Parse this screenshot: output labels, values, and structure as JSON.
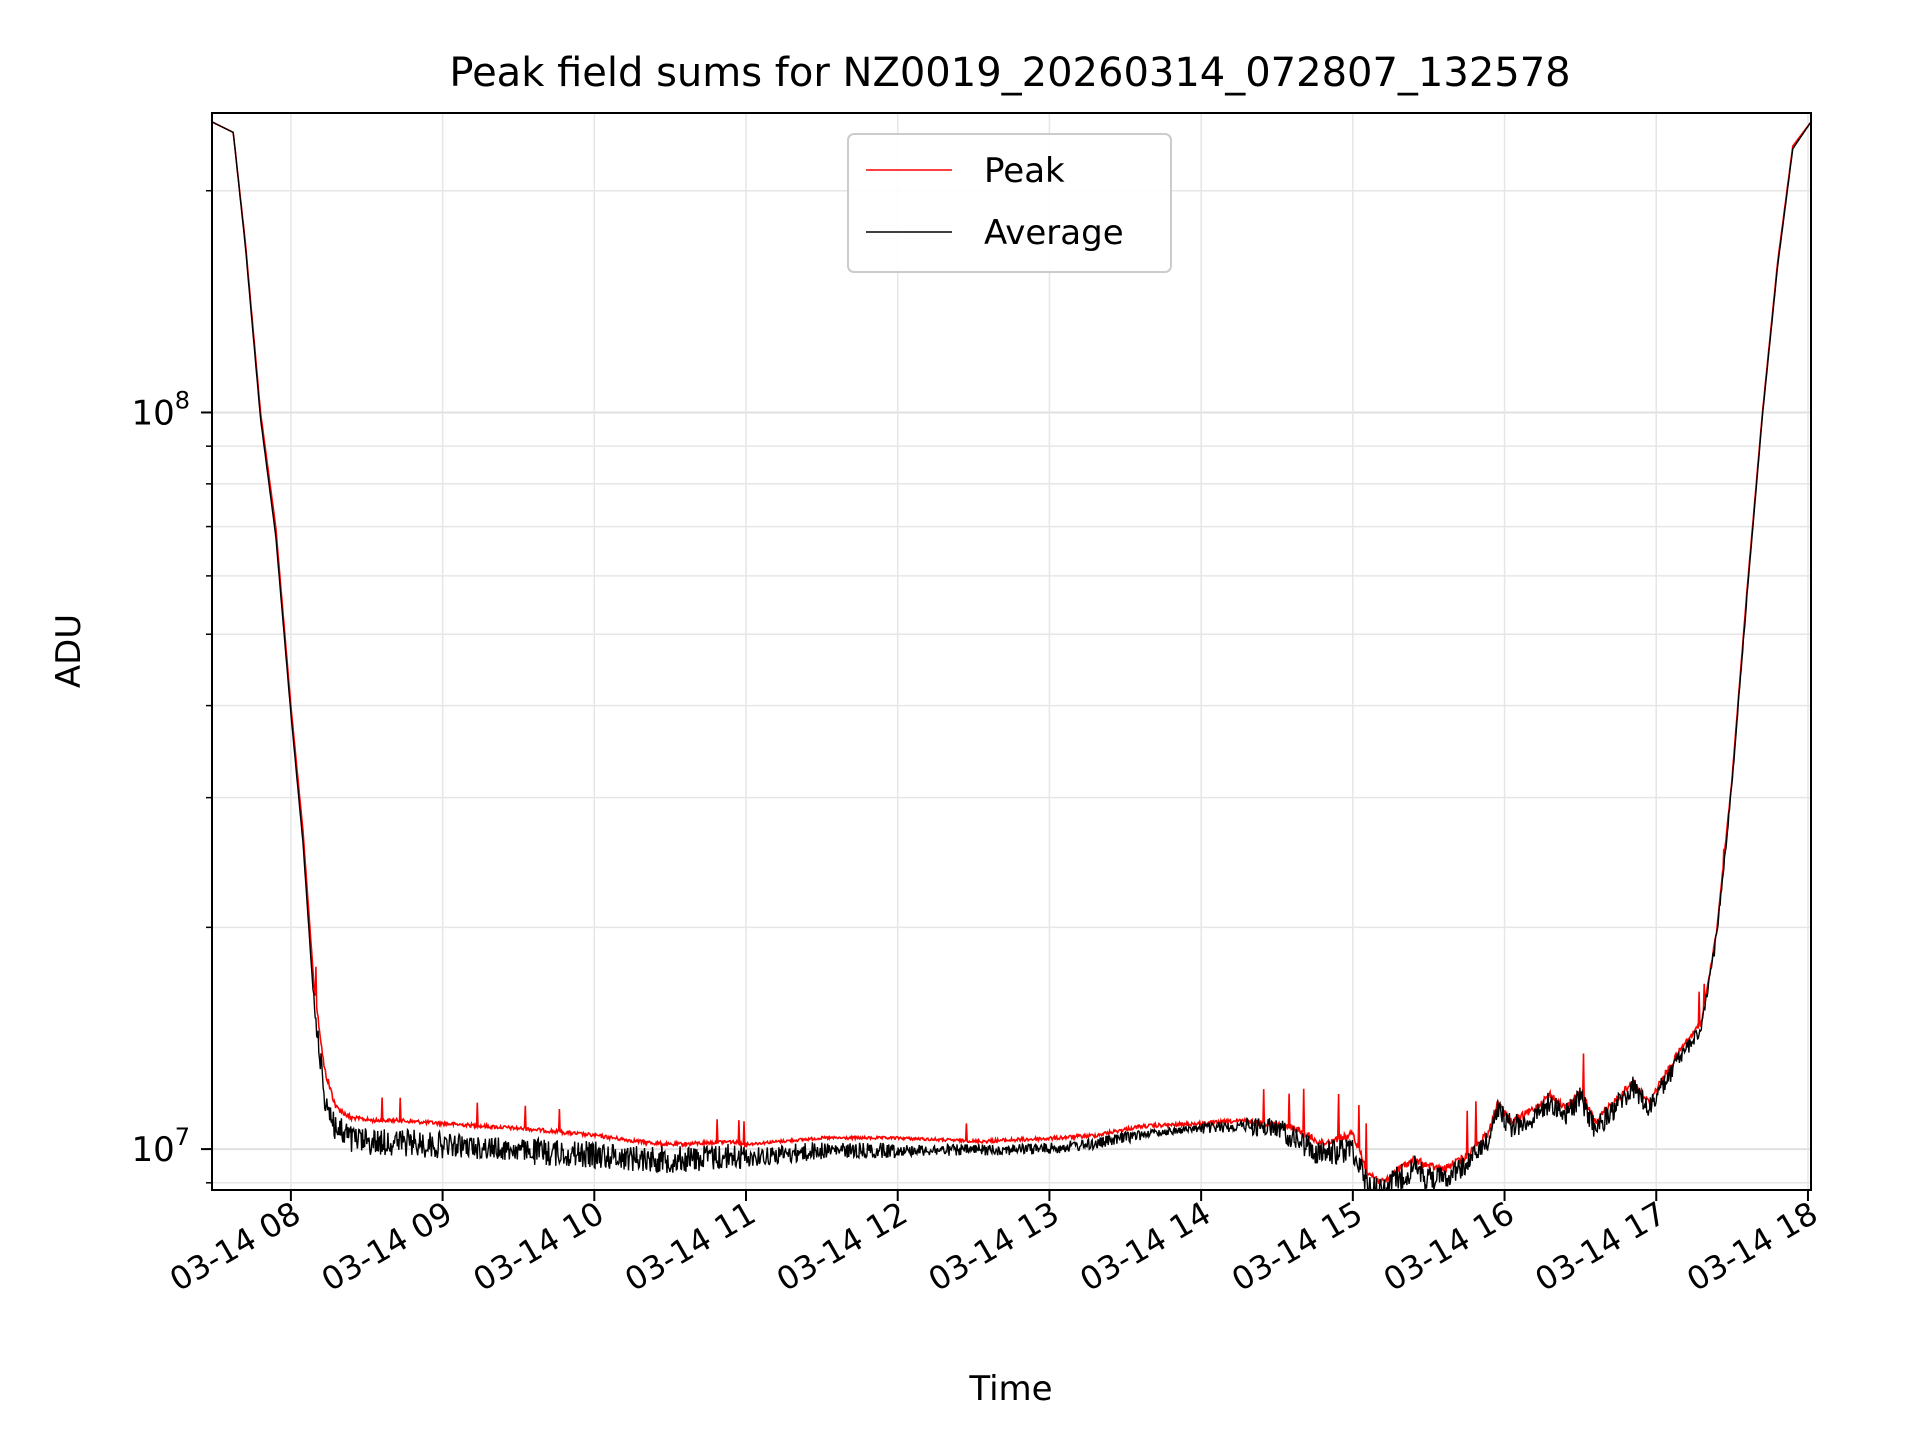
{
  "chart_data": {
    "type": "line",
    "title": "Peak field sums for NZ0019_20260314_072807_132578",
    "xlabel": "Time",
    "ylabel": "ADU",
    "yscale": "log",
    "ylim": [
      8800000,
      255000000
    ],
    "xlim_hours": [
      7.48,
      18.02
    ],
    "grid": true,
    "legend_position": "top-center",
    "x_ticks": [
      {
        "value": 8,
        "label": "03-14 08"
      },
      {
        "value": 9,
        "label": "03-14 09"
      },
      {
        "value": 10,
        "label": "03-14 10"
      },
      {
        "value": 11,
        "label": "03-14 11"
      },
      {
        "value": 12,
        "label": "03-14 12"
      },
      {
        "value": 13,
        "label": "03-14 13"
      },
      {
        "value": 14,
        "label": "03-14 14"
      },
      {
        "value": 15,
        "label": "03-14 15"
      },
      {
        "value": 16,
        "label": "03-14 16"
      },
      {
        "value": 17,
        "label": "03-14 17"
      },
      {
        "value": 18,
        "label": "03-14 18"
      }
    ],
    "y_ticks": [
      {
        "value": 10000000,
        "base": "10",
        "exp": "7"
      },
      {
        "value": 100000000,
        "base": "10",
        "exp": "8"
      }
    ],
    "series": [
      {
        "name": "Peak",
        "color": "#ff0000",
        "x": [
          7.48,
          7.62,
          7.7,
          7.8,
          7.9,
          8.0,
          8.08,
          8.15,
          8.22,
          8.3,
          8.4,
          8.55,
          8.7,
          9.0,
          9.3,
          9.6,
          10.0,
          10.3,
          10.5,
          10.9,
          11.0,
          11.5,
          12.0,
          12.5,
          13.0,
          13.3,
          13.6,
          14.0,
          14.3,
          14.5,
          14.65,
          14.8,
          15.0,
          15.1,
          15.2,
          15.3,
          15.4,
          15.5,
          15.6,
          15.75,
          15.9,
          15.95,
          16.05,
          16.2,
          16.3,
          16.4,
          16.5,
          16.6,
          16.7,
          16.85,
          16.95,
          17.05,
          17.15,
          17.3,
          17.4,
          17.5,
          17.6,
          17.7,
          17.8,
          17.9,
          18.02
        ],
        "y": [
          248000000,
          240000000,
          170000000,
          100000000,
          70000000,
          40000000,
          27000000,
          17000000,
          13000000,
          11500000,
          11100000,
          11000000,
          11000000,
          10900000,
          10800000,
          10700000,
          10500000,
          10300000,
          10200000,
          10300000,
          10200000,
          10400000,
          10400000,
          10300000,
          10400000,
          10500000,
          10800000,
          10900000,
          11000000,
          10900000,
          10700000,
          10300000,
          10600000,
          9400000,
          9100000,
          9500000,
          9800000,
          9600000,
          9500000,
          9900000,
          10700000,
          11700000,
          11000000,
          11500000,
          12000000,
          11500000,
          12100000,
          11000000,
          11600000,
          12500000,
          11700000,
          12700000,
          13700000,
          15000000,
          20000000,
          32000000,
          58000000,
          100000000,
          160000000,
          230000000,
          248000000
        ],
        "noise": [
          0,
          0,
          0,
          0,
          0,
          0,
          0,
          0,
          0.03,
          0.04,
          0.03,
          0.02,
          0.02,
          0.02,
          0.02,
          0.02,
          0.02,
          0.02,
          0.02,
          0.02,
          0.02,
          0.015,
          0.015,
          0.015,
          0.02,
          0.02,
          0.02,
          0.02,
          0.02,
          0.03,
          0.03,
          0.04,
          0.04,
          0.04,
          0.04,
          0.04,
          0.04,
          0.04,
          0.04,
          0.04,
          0.04,
          0.04,
          0.04,
          0.04,
          0.04,
          0.04,
          0.04,
          0.04,
          0.04,
          0.04,
          0.04,
          0.04,
          0.04,
          0.03,
          0.02,
          0.01,
          0,
          0,
          0,
          0,
          0
        ]
      },
      {
        "name": "Average",
        "color": "#000000",
        "x": [
          7.48,
          7.62,
          7.7,
          7.8,
          7.9,
          8.0,
          8.08,
          8.15,
          8.22,
          8.3,
          8.4,
          8.55,
          8.7,
          9.0,
          9.3,
          9.6,
          10.0,
          10.3,
          10.5,
          10.9,
          11.0,
          11.5,
          12.0,
          12.5,
          13.0,
          13.3,
          13.6,
          14.0,
          14.3,
          14.5,
          14.65,
          14.8,
          15.0,
          15.1,
          15.2,
          15.3,
          15.4,
          15.5,
          15.6,
          15.75,
          15.9,
          15.95,
          16.05,
          16.2,
          16.3,
          16.4,
          16.5,
          16.6,
          16.7,
          16.85,
          16.95,
          17.05,
          17.15,
          17.3,
          17.4,
          17.5,
          17.6,
          17.7,
          17.8,
          17.9,
          18.02
        ],
        "y": [
          248000000,
          240000000,
          168000000,
          98000000,
          68000000,
          39000000,
          26000000,
          16000000,
          12000000,
          10700000,
          10400000,
          10300000,
          10300000,
          10200000,
          10100000,
          10000000,
          9900000,
          9800000,
          9750000,
          9850000,
          9800000,
          10000000,
          10000000,
          10000000,
          10050000,
          10200000,
          10500000,
          10700000,
          10800000,
          10750000,
          10300000,
          9900000,
          10100000,
          9000000,
          8800000,
          9200000,
          9500000,
          9200000,
          9200000,
          9600000,
          10400000,
          11400000,
          10800000,
          11100000,
          11700000,
          11200000,
          11800000,
          10700000,
          11300000,
          12200000,
          11400000,
          12300000,
          13300000,
          14700000,
          19600000,
          31500000,
          57000000,
          99000000,
          158000000,
          228000000,
          248000000
        ],
        "noise": [
          0,
          0,
          0,
          0,
          0,
          0,
          0,
          0,
          0.06,
          0.09,
          0.08,
          0.07,
          0.07,
          0.07,
          0.06,
          0.06,
          0.07,
          0.07,
          0.07,
          0.07,
          0.07,
          0.05,
          0.04,
          0.03,
          0.03,
          0.03,
          0.03,
          0.02,
          0.03,
          0.05,
          0.06,
          0.07,
          0.07,
          0.07,
          0.07,
          0.07,
          0.07,
          0.07,
          0.06,
          0.06,
          0.05,
          0.05,
          0.06,
          0.06,
          0.06,
          0.06,
          0.06,
          0.06,
          0.06,
          0.06,
          0.06,
          0.06,
          0.05,
          0.04,
          0.03,
          0.02,
          0.01,
          0,
          0,
          0,
          0
        ]
      }
    ]
  }
}
